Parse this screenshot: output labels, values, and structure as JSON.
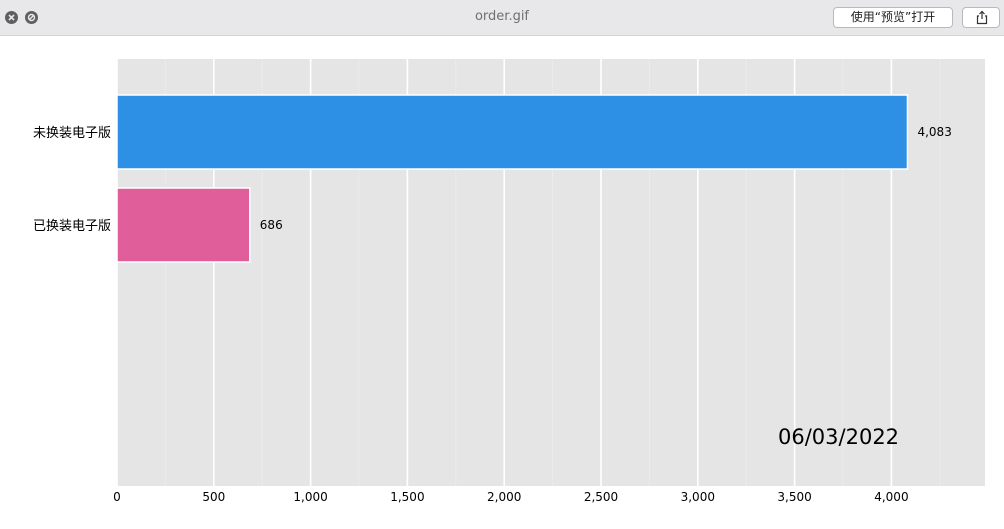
{
  "window": {
    "title": "order.gif",
    "open_button_label": "使用“预览”打开",
    "close_icon": "close-icon",
    "minimize_icon": "minimize-icon",
    "share_icon": "share-icon"
  },
  "chart_data": {
    "type": "bar",
    "orientation": "horizontal",
    "categories": [
      "未换装电子版",
      "已换装电子版"
    ],
    "values": [
      4083,
      686
    ],
    "value_labels": [
      "4,083",
      "686"
    ],
    "colors": [
      "#2e90e5",
      "#e05f9a"
    ],
    "annotation": "06/03/2022",
    "xlim": [
      0,
      4500
    ],
    "xticks": [
      0,
      500,
      1000,
      1500,
      2000,
      2500,
      3000,
      3500,
      4000
    ],
    "xtick_labels": [
      "0",
      "500",
      "1,000",
      "1,500",
      "2,000",
      "2,500",
      "3,000",
      "3,500",
      "4,000"
    ],
    "grid": true,
    "background": "#e5e5e5",
    "title": "",
    "xlabel": "",
    "ylabel": ""
  }
}
